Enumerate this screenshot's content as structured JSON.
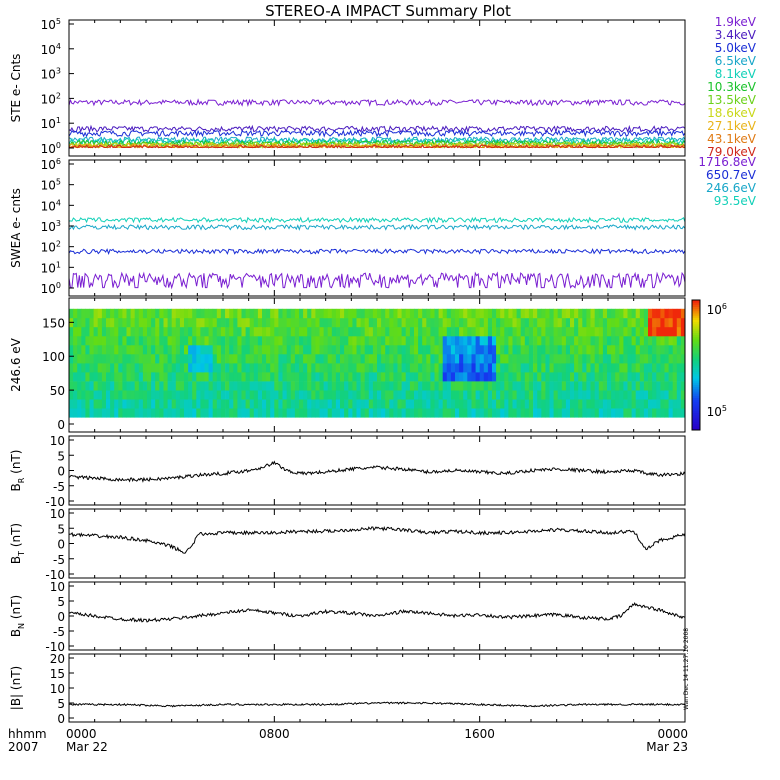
{
  "title": "STEREO-A IMPACT Summary Plot",
  "time_axis": {
    "corner_labels": [
      "hhmm",
      "2007"
    ],
    "ticks": [
      {
        "t": 0,
        "hhmm": "0000",
        "date": "Mar 22"
      },
      {
        "t": 8,
        "hhmm": "0800",
        "date": ""
      },
      {
        "t": 16,
        "hhmm": "1600",
        "date": ""
      },
      {
        "t": 24,
        "hhmm": "0000",
        "date": "Mar 23"
      }
    ],
    "range_hours": [
      0,
      24
    ]
  },
  "side_stamp": "Wan Dec 14 11:27:10 2008",
  "colors": {
    "ste_channels": [
      "#7a1fd1",
      "#4a1bbf",
      "#1a2ed6",
      "#18a6c8",
      "#12d0b8",
      "#19c22a",
      "#6bd11a",
      "#c9d81a",
      "#e9b41a",
      "#e07a14",
      "#d0281a"
    ],
    "swea_channels": [
      "#7a1fd1",
      "#1a2ed6",
      "#18a6c8",
      "#12d0b8"
    ],
    "field_line": "#000000"
  },
  "chart_data": [
    {
      "type": "line",
      "panel": "ste",
      "ylabel": "STE e- Cnts",
      "yscale": "log",
      "ylim": [
        1,
        100000
      ],
      "y_ticks": [
        "10^0",
        "10^1",
        "10^2",
        "10^3",
        "10^4",
        "10^5"
      ],
      "x_hours": [
        0,
        24
      ],
      "series": [
        {
          "name": "1.9keV",
          "level": 70
        },
        {
          "name": "3.4keV",
          "level": 6
        },
        {
          "name": "5.0keV",
          "level": 4
        },
        {
          "name": "6.5keV",
          "level": 2.2
        },
        {
          "name": "8.1keV",
          "level": 1.9
        },
        {
          "name": "10.3keV",
          "level": 1.6
        },
        {
          "name": "13.5keV",
          "level": 1.4
        },
        {
          "name": "18.6keV",
          "level": 1.3
        },
        {
          "name": "27.1keV",
          "level": 1.2
        },
        {
          "name": "43.1keV",
          "level": 1.1
        },
        {
          "name": "79.0keV",
          "level": 1.05
        }
      ]
    },
    {
      "type": "line",
      "panel": "swea",
      "ylabel": "SWEA e- cnts",
      "yscale": "log",
      "ylim": [
        1,
        1000000
      ],
      "y_ticks": [
        "10^0",
        "10^1",
        "10^2",
        "10^3",
        "10^4",
        "10^5",
        "10^6"
      ],
      "x_hours": [
        0,
        24
      ],
      "series": [
        {
          "name": "1716.8eV",
          "level": 3
        },
        {
          "name": "650.7eV",
          "level": 60
        },
        {
          "name": "246.6eV",
          "level": 900
        },
        {
          "name": "93.5eV",
          "level": 2000
        }
      ]
    },
    {
      "type": "heatmap",
      "panel": "pad",
      "ylabel": "246.6 eV",
      "ylim": [
        0,
        180
      ],
      "y_ticks": [
        "0",
        "50",
        "100",
        "150"
      ],
      "colorbar": {
        "scale": "log",
        "min_label": "10^5",
        "max_label": "10^6"
      },
      "x_hours": [
        0,
        24
      ]
    },
    {
      "type": "line",
      "panel": "br",
      "ylabel": "B_R (nT)",
      "ylim": [
        -10,
        10
      ],
      "y_ticks": [
        "10",
        "5",
        "0",
        "-5",
        "-10"
      ],
      "x": [
        0,
        1,
        2,
        3,
        4,
        5,
        6,
        7,
        7.5,
        8,
        8.5,
        9,
        10,
        11,
        12,
        13,
        14,
        15,
        16,
        17,
        18,
        19,
        20,
        21,
        22,
        22.5,
        23,
        24
      ],
      "values": [
        -2,
        -2.5,
        -3,
        -3,
        -2.5,
        -1.5,
        -1,
        0,
        1,
        2.5,
        0,
        -1,
        -0.5,
        0.5,
        1,
        0.5,
        -0.5,
        0,
        -0.5,
        -1,
        0,
        0.5,
        0,
        -0.5,
        0,
        -1,
        -1.5,
        -1
      ]
    },
    {
      "type": "line",
      "panel": "bt",
      "ylabel": "B_T (nT)",
      "ylim": [
        -10,
        10
      ],
      "y_ticks": [
        "10",
        "5",
        "0",
        "-5",
        "-10"
      ],
      "x": [
        0,
        1,
        2,
        3,
        4,
        4.5,
        4.8,
        5,
        6,
        7,
        8,
        9,
        10,
        11,
        12,
        13,
        14,
        15,
        16,
        17,
        18,
        19,
        20,
        21,
        22,
        22.5,
        23,
        24
      ],
      "values": [
        3,
        2.5,
        2,
        1,
        -1,
        -3,
        -1,
        3,
        3.5,
        3.5,
        3.5,
        4,
        4,
        4.5,
        5,
        4.5,
        3.5,
        4,
        3.5,
        3.5,
        4,
        4.5,
        4,
        3.5,
        4,
        -2,
        1,
        3
      ]
    },
    {
      "type": "line",
      "panel": "bn",
      "ylabel": "B_N (nT)",
      "ylim": [
        -10,
        10
      ],
      "y_ticks": [
        "10",
        "5",
        "0",
        "-5",
        "-10"
      ],
      "x": [
        0,
        1,
        2,
        3,
        4,
        5,
        6,
        7,
        8,
        9,
        10,
        11,
        12,
        13,
        14,
        15,
        16,
        17,
        18,
        19,
        20,
        21,
        21.5,
        22,
        22.5,
        23,
        24
      ],
      "values": [
        1,
        0,
        -1,
        -1.5,
        -1,
        0,
        1,
        2,
        1,
        0,
        1.5,
        1,
        0,
        1.5,
        1,
        0,
        0.5,
        -0.5,
        0,
        0.5,
        -0.5,
        -1,
        0,
        4,
        3,
        2,
        -0.5
      ]
    },
    {
      "type": "line",
      "panel": "bmag",
      "ylabel": "|B| (nT)",
      "ylim": [
        0,
        20
      ],
      "y_ticks": [
        "20",
        "15",
        "10",
        "5",
        "0"
      ],
      "x": [
        0,
        2,
        4,
        6,
        8,
        10,
        12,
        14,
        16,
        18,
        20,
        22,
        24
      ],
      "values": [
        4.5,
        4.5,
        4,
        4.5,
        4.5,
        4.5,
        5,
        5,
        4.5,
        4,
        4.5,
        4.5,
        4.5
      ]
    }
  ]
}
